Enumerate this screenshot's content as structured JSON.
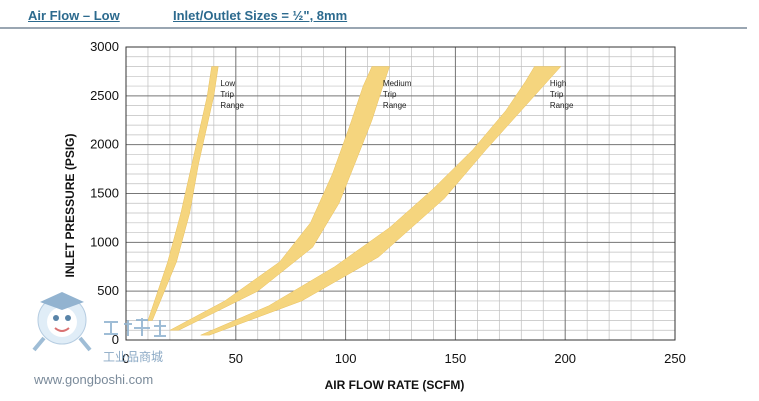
{
  "header": {
    "left": "Air Flow – Low",
    "right": "Inlet/Outlet Sizes = ½\", 8mm"
  },
  "watermark": {
    "brand_cn": "工业品商城",
    "url": "www.gongboshi.com"
  },
  "chart_data": {
    "type": "area",
    "xlabel": "AIR FLOW RATE (SCFM)",
    "ylabel": "INLET PRESSURE (PSIG)",
    "xlim": [
      0,
      250
    ],
    "ylim": [
      0,
      3000
    ],
    "x_ticks": [
      "0",
      "50",
      "100",
      "150",
      "200",
      "250"
    ],
    "y_ticks": [
      "0",
      "500",
      "1000",
      "1500",
      "2000",
      "2500",
      "3000"
    ],
    "grid": true,
    "band_color": "#f5d57e",
    "series": [
      {
        "name": "Low Trip Range",
        "label_lines": [
          "Low",
          "Trip",
          "Range"
        ],
        "label_at": [
          43,
          2600
        ],
        "upper": [
          [
            10,
            200
          ],
          [
            19,
            800
          ],
          [
            25,
            1300
          ],
          [
            30,
            1800
          ],
          [
            34,
            2200
          ],
          [
            37,
            2500
          ],
          [
            39,
            2800
          ]
        ],
        "lower": [
          [
            12,
            200
          ],
          [
            23,
            800
          ],
          [
            29,
            1300
          ],
          [
            33,
            1800
          ],
          [
            37,
            2200
          ],
          [
            40,
            2500
          ],
          [
            42,
            2800
          ]
        ]
      },
      {
        "name": "Medium Trip Range",
        "label_lines": [
          "Medium",
          "Trip",
          "Range"
        ],
        "label_at": [
          117,
          2600
        ],
        "upper": [
          [
            20,
            100
          ],
          [
            45,
            400
          ],
          [
            70,
            800
          ],
          [
            84,
            1200
          ],
          [
            94,
            1700
          ],
          [
            102,
            2200
          ],
          [
            108,
            2600
          ],
          [
            112,
            2800
          ]
        ],
        "lower": [
          [
            24,
            100
          ],
          [
            60,
            500
          ],
          [
            85,
            950
          ],
          [
            97,
            1400
          ],
          [
            105,
            1850
          ],
          [
            112,
            2250
          ],
          [
            117,
            2600
          ],
          [
            120,
            2800
          ]
        ]
      },
      {
        "name": "High Trip Range",
        "label_lines": [
          "High",
          "Trip",
          "Range"
        ],
        "label_at": [
          193,
          2600
        ],
        "upper": [
          [
            34,
            50
          ],
          [
            65,
            350
          ],
          [
            95,
            750
          ],
          [
            120,
            1150
          ],
          [
            140,
            1550
          ],
          [
            158,
            1950
          ],
          [
            173,
            2350
          ],
          [
            182,
            2650
          ],
          [
            186,
            2800
          ]
        ],
        "lower": [
          [
            38,
            50
          ],
          [
            80,
            400
          ],
          [
            115,
            850
          ],
          [
            145,
            1450
          ],
          [
            164,
            1950
          ],
          [
            180,
            2350
          ],
          [
            192,
            2650
          ],
          [
            198,
            2800
          ]
        ]
      }
    ]
  }
}
